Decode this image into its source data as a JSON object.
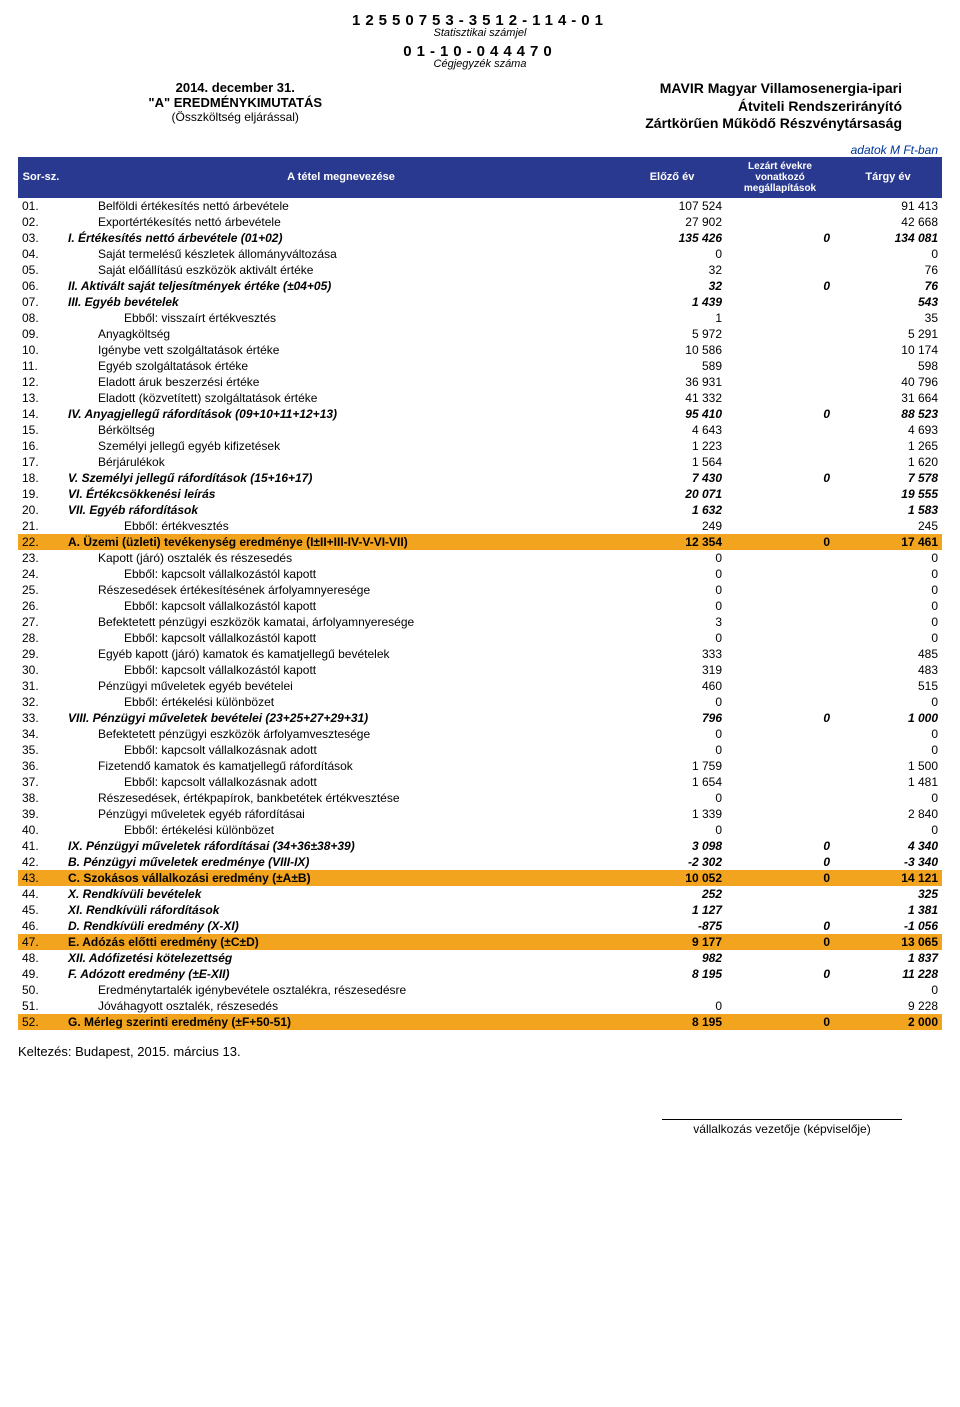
{
  "header": {
    "stat_num": "12550753-3512-114-01",
    "stat_label": "Statisztikai számjel",
    "reg_num": "01-10-044470",
    "reg_label": "Cégjegyzék száma",
    "date_line": "2014. december 31.",
    "report_type": "\"A\" EREDMÉNYKIMUTATÁS",
    "method": "(Összköltség eljárással)",
    "company_l1": "MAVIR Magyar Villamosenergia-ipari",
    "company_l2": "Átviteli Rendszerirányító",
    "company_l3": "Zártkörűen Működő Részvénytársaság",
    "unit": "adatok M Ft-ban"
  },
  "columns": {
    "sor": "Sor-sz.",
    "name": "A tétel megnevezése",
    "prev": "Előző év",
    "closed": "Lezárt évekre vonatkozó megállapítások",
    "curr": "Tárgy év"
  },
  "rows": [
    {
      "n": "01.",
      "t": "Belföldi értékesítés nettó árbevétele",
      "p": "107 524",
      "m": "",
      "c": "91 413",
      "ind": 1
    },
    {
      "n": "02.",
      "t": "Exportértékesítés nettó árbevétele",
      "p": "27 902",
      "m": "",
      "c": "42 668",
      "ind": 1
    },
    {
      "n": "03.",
      "t": "I. Értékesítés nettó árbevétele (01+02)",
      "p": "135 426",
      "m": "0",
      "c": "134 081",
      "b": 1
    },
    {
      "n": "04.",
      "t": "Saját termelésű készletek állományváltozása",
      "p": "0",
      "m": "",
      "c": "0",
      "ind": 1
    },
    {
      "n": "05.",
      "t": "Saját előállítású eszközök aktivált értéke",
      "p": "32",
      "m": "",
      "c": "76",
      "ind": 1
    },
    {
      "n": "06.",
      "t": "II. Aktivált saját teljesítmények értéke (±04+05)",
      "p": "32",
      "m": "0",
      "c": "76",
      "b": 1
    },
    {
      "n": "07.",
      "t": "III. Egyéb bevételek",
      "p": "1 439",
      "m": "",
      "c": "543",
      "b": 1
    },
    {
      "n": "08.",
      "t": "Ebből: visszaírt értékvesztés",
      "p": "1",
      "m": "",
      "c": "35",
      "ind": 2
    },
    {
      "n": "09.",
      "t": "Anyagköltség",
      "p": "5 972",
      "m": "",
      "c": "5 291",
      "ind": 1
    },
    {
      "n": "10.",
      "t": "Igénybe vett szolgáltatások értéke",
      "p": "10 586",
      "m": "",
      "c": "10 174",
      "ind": 1
    },
    {
      "n": "11.",
      "t": "Egyéb szolgáltatások értéke",
      "p": "589",
      "m": "",
      "c": "598",
      "ind": 1
    },
    {
      "n": "12.",
      "t": "Eladott áruk beszerzési értéke",
      "p": "36 931",
      "m": "",
      "c": "40 796",
      "ind": 1
    },
    {
      "n": "13.",
      "t": "Eladott (közvetített) szolgáltatások értéke",
      "p": "41 332",
      "m": "",
      "c": "31 664",
      "ind": 1
    },
    {
      "n": "14.",
      "t": "IV. Anyagjellegű ráfordítások (09+10+11+12+13)",
      "p": "95 410",
      "m": "0",
      "c": "88 523",
      "b": 1
    },
    {
      "n": "15.",
      "t": "Bérköltség",
      "p": "4 643",
      "m": "",
      "c": "4 693",
      "ind": 1
    },
    {
      "n": "16.",
      "t": "Személyi jellegű egyéb kifizetések",
      "p": "1 223",
      "m": "",
      "c": "1 265",
      "ind": 1
    },
    {
      "n": "17.",
      "t": "Bérjárulékok",
      "p": "1 564",
      "m": "",
      "c": "1 620",
      "ind": 1
    },
    {
      "n": "18.",
      "t": "V. Személyi jellegű ráfordítások (15+16+17)",
      "p": "7 430",
      "m": "0",
      "c": "7 578",
      "b": 1
    },
    {
      "n": "19.",
      "t": "VI. Értékcsökkenési leírás",
      "p": "20 071",
      "m": "",
      "c": "19 555",
      "b": 1
    },
    {
      "n": "20.",
      "t": "VII. Egyéb ráfordítások",
      "p": "1 632",
      "m": "",
      "c": "1 583",
      "b": 1
    },
    {
      "n": "21.",
      "t": "Ebből: értékvesztés",
      "p": "249",
      "m": "",
      "c": "245",
      "ind": 2
    },
    {
      "n": "22.",
      "t": "A. Üzemi (üzleti) tevékenység eredménye (I±II+III-IV-V-VI-VII)",
      "p": "12 354",
      "m": "0",
      "c": "17 461",
      "hl": 1
    },
    {
      "n": "23.",
      "t": "Kapott (járó) osztalék és részesedés",
      "p": "0",
      "m": "",
      "c": "0",
      "ind": 1
    },
    {
      "n": "24.",
      "t": "Ebből: kapcsolt vállalkozástól kapott",
      "p": "0",
      "m": "",
      "c": "0",
      "ind": 2
    },
    {
      "n": "25.",
      "t": "Részesedések értékesítésének árfolyamnyeresége",
      "p": "0",
      "m": "",
      "c": "0",
      "ind": 1
    },
    {
      "n": "26.",
      "t": "Ebből: kapcsolt vállalkozástól kapott",
      "p": "0",
      "m": "",
      "c": "0",
      "ind": 2
    },
    {
      "n": "27.",
      "t": "Befektetett pénzügyi eszközök kamatai, árfolyamnyeresége",
      "p": "3",
      "m": "",
      "c": "0",
      "ind": 1
    },
    {
      "n": "28.",
      "t": "Ebből: kapcsolt vállalkozástól kapott",
      "p": "0",
      "m": "",
      "c": "0",
      "ind": 2
    },
    {
      "n": "29.",
      "t": "Egyéb kapott (járó) kamatok és kamatjellegű bevételek",
      "p": "333",
      "m": "",
      "c": "485",
      "ind": 1
    },
    {
      "n": "30.",
      "t": "Ebből: kapcsolt vállalkozástól kapott",
      "p": "319",
      "m": "",
      "c": "483",
      "ind": 2
    },
    {
      "n": "31.",
      "t": "Pénzügyi műveletek egyéb bevételei",
      "p": "460",
      "m": "",
      "c": "515",
      "ind": 1
    },
    {
      "n": "32.",
      "t": "Ebből: értékelési különbözet",
      "p": "0",
      "m": "",
      "c": "0",
      "ind": 2
    },
    {
      "n": "33.",
      "t": "VIII. Pénzügyi műveletek bevételei (23+25+27+29+31)",
      "p": "796",
      "m": "0",
      "c": "1 000",
      "b": 1
    },
    {
      "n": "34.",
      "t": "Befektetett pénzügyi eszközök árfolyamvesztesége",
      "p": "0",
      "m": "",
      "c": "0",
      "ind": 1
    },
    {
      "n": "35.",
      "t": "Ebből: kapcsolt vállalkozásnak adott",
      "p": "0",
      "m": "",
      "c": "0",
      "ind": 2
    },
    {
      "n": "36.",
      "t": "Fizetendő kamatok és kamatjellegű ráfordítások",
      "p": "1 759",
      "m": "",
      "c": "1 500",
      "ind": 1
    },
    {
      "n": "37.",
      "t": "Ebből: kapcsolt vállalkozásnak adott",
      "p": "1 654",
      "m": "",
      "c": "1 481",
      "ind": 2
    },
    {
      "n": "38.",
      "t": "Részesedések, értékpapírok, bankbetétek értékvesztése",
      "p": "0",
      "m": "",
      "c": "0",
      "ind": 1
    },
    {
      "n": "39.",
      "t": "Pénzügyi műveletek egyéb ráfordításai",
      "p": "1 339",
      "m": "",
      "c": "2 840",
      "ind": 1
    },
    {
      "n": "40.",
      "t": "Ebből: értékelési különbözet",
      "p": "0",
      "m": "",
      "c": "0",
      "ind": 2
    },
    {
      "n": "41.",
      "t": "IX. Pénzügyi műveletek ráfordításai (34+36±38+39)",
      "p": "3 098",
      "m": "0",
      "c": "4 340",
      "b": 1
    },
    {
      "n": "42.",
      "t": "B. Pénzügyi műveletek eredménye (VIII-IX)",
      "p": "-2 302",
      "m": "0",
      "c": "-3 340",
      "b": 1
    },
    {
      "n": "43.",
      "t": "C. Szokásos vállalkozási eredmény (±A±B)",
      "p": "10 052",
      "m": "0",
      "c": "14 121",
      "hl": 1
    },
    {
      "n": "44.",
      "t": "X. Rendkívüli bevételek",
      "p": "252",
      "m": "",
      "c": "325",
      "b": 1
    },
    {
      "n": "45.",
      "t": "XI. Rendkívüli ráfordítások",
      "p": "1 127",
      "m": "",
      "c": "1 381",
      "b": 1
    },
    {
      "n": "46.",
      "t": "D. Rendkívüli eredmény (X-XI)",
      "p": "-875",
      "m": "0",
      "c": "-1 056",
      "b": 1
    },
    {
      "n": "47.",
      "t": "E. Adózás előtti eredmény (±C±D)",
      "p": "9 177",
      "m": "0",
      "c": "13 065",
      "hl": 1
    },
    {
      "n": "48.",
      "t": "XII. Adófizetési kötelezettség",
      "p": "982",
      "m": "",
      "c": "1 837",
      "b": 1
    },
    {
      "n": "49.",
      "t": "F. Adózott eredmény (±E-XII)",
      "p": "8 195",
      "m": "0",
      "c": "11 228",
      "b": 1
    },
    {
      "n": "50.",
      "t": "Eredménytartalék igénybevétele osztalékra, részesedésre",
      "p": "",
      "m": "",
      "c": "0",
      "ind": 1
    },
    {
      "n": "51.",
      "t": "Jóváhagyott osztalék, részesedés",
      "p": "0",
      "m": "",
      "c": "9 228",
      "ind": 1
    },
    {
      "n": "52.",
      "t": "G. Mérleg szerinti eredmény (±F+50-51)",
      "p": "8 195",
      "m": "0",
      "c": "2 000",
      "hl": 1
    }
  ],
  "footer": {
    "date": "Keltezés: Budapest, 2015. március 13.",
    "sig": "vállalkozás vezetője (képviselője)"
  }
}
